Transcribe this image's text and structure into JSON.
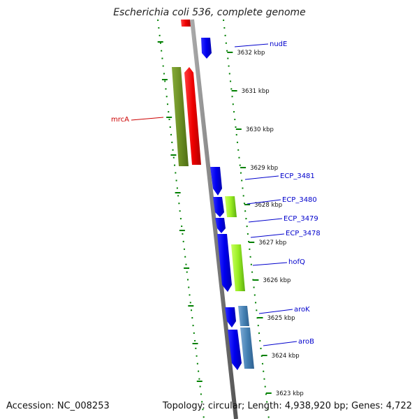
{
  "title": "Escherichia coli 536, complete genome",
  "footer": {
    "accession": "Accession: NC_008253",
    "topology": "Topology: circular; Length: 4,938,920 bp; Genes: 4,722"
  },
  "colors": {
    "blue": "#0000ee",
    "red": "#ee0000",
    "olive": "#6b8e23",
    "light_green": "#9aee22",
    "steel_blue": "#4682b4",
    "backbone": "#808080",
    "tick": "#008000",
    "label_red": "#cc0000",
    "label_blue": "#0000cc"
  },
  "ticks": [
    {
      "label": "3632 kbp"
    },
    {
      "label": "3631 kbp"
    },
    {
      "label": "3630 kbp"
    },
    {
      "label": "3629 kbp"
    },
    {
      "label": "3628 kbp"
    },
    {
      "label": "3627 kbp"
    },
    {
      "label": "3626 kbp"
    },
    {
      "label": "3625 kbp"
    },
    {
      "label": "3624 kbp"
    },
    {
      "label": "3623 kbp"
    }
  ],
  "genes": [
    {
      "name": "nudE",
      "color": "blue"
    },
    {
      "name": "mrcA",
      "color": "red"
    },
    {
      "name": "ECP_3481",
      "color": "blue"
    },
    {
      "name": "ECP_3480",
      "color": "light_green"
    },
    {
      "name": "ECP_3479",
      "color": "blue"
    },
    {
      "name": "ECP_3478",
      "color": "blue"
    },
    {
      "name": "hofQ",
      "color": "blue"
    },
    {
      "name": "aroK",
      "color": "blue"
    },
    {
      "name": "aroB",
      "color": "blue"
    }
  ]
}
